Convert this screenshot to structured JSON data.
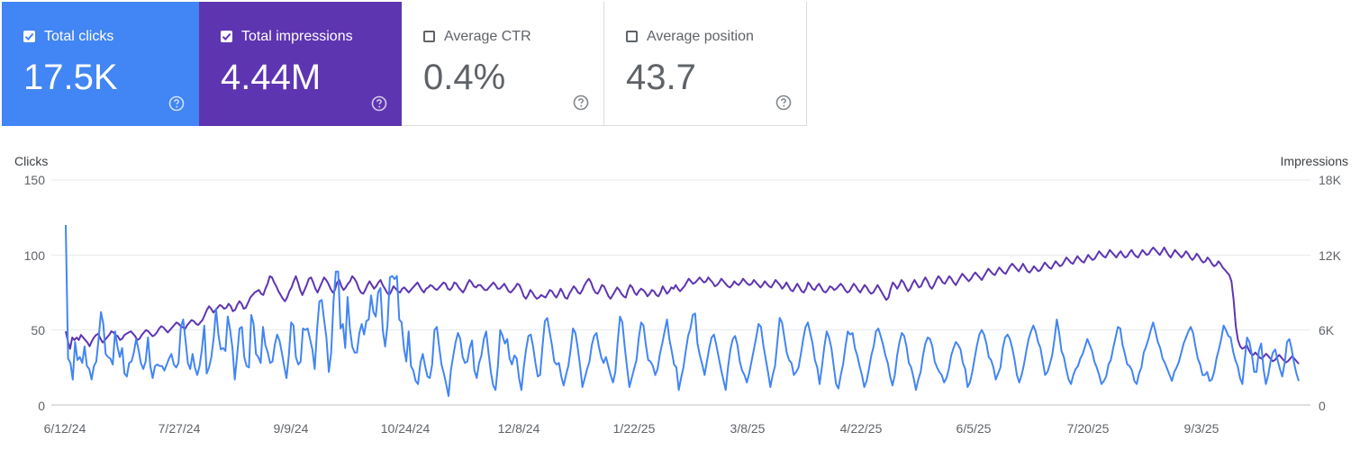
{
  "metrics": [
    {
      "key": "clicks",
      "label": "Total clicks",
      "value": "17.5K",
      "checked": true
    },
    {
      "key": "impr",
      "label": "Total impressions",
      "value": "4.44M",
      "checked": true
    },
    {
      "key": "ctr",
      "label": "Average CTR",
      "value": "0.4%",
      "checked": false
    },
    {
      "key": "pos",
      "label": "Average position",
      "value": "43.7",
      "checked": false
    }
  ],
  "colors": {
    "clicks": "#4285f4",
    "impressions": "#5e35b1",
    "grid": "#e8eaed",
    "baseline": "#bdc1c6"
  },
  "chart_data": {
    "type": "line",
    "left_axis_title": "Clicks",
    "right_axis_title": "Impressions",
    "left_ticks": [
      "150",
      "100",
      "50",
      "0"
    ],
    "right_ticks": [
      "18K",
      "12K",
      "6K",
      "0"
    ],
    "ylim_left": [
      0,
      150
    ],
    "ylim_right": [
      0,
      18000
    ],
    "x_ticks": [
      "6/12/24",
      "7/27/24",
      "9/9/24",
      "10/24/24",
      "12/8/24",
      "1/22/25",
      "3/8/25",
      "4/22/25",
      "6/5/25",
      "7/20/25",
      "9/3/25"
    ],
    "series": [
      {
        "name": "Clicks",
        "axis": "left",
        "values": [
          120,
          31,
          28,
          17,
          42,
          30,
          32,
          28,
          39,
          26,
          24,
          17,
          26,
          29,
          44,
          62,
          54,
          34,
          32,
          31,
          27,
          49,
          39,
          32,
          38,
          21,
          19,
          28,
          29,
          35,
          44,
          37,
          28,
          24,
          29,
          45,
          26,
          18,
          26,
          27,
          26,
          26,
          23,
          27,
          31,
          34,
          27,
          25,
          28,
          52,
          57,
          43,
          28,
          24,
          34,
          25,
          20,
          26,
          37,
          53,
          21,
          25,
          32,
          45,
          64,
          47,
          37,
          38,
          36,
          59,
          50,
          38,
          17,
          34,
          51,
          52,
          32,
          26,
          25,
          60,
          54,
          34,
          32,
          28,
          52,
          40,
          35,
          28,
          29,
          40,
          47,
          43,
          35,
          26,
          18,
          33,
          55,
          53,
          32,
          27,
          29,
          51,
          50,
          51,
          44,
          37,
          24,
          50,
          69,
          70,
          57,
          45,
          22,
          35,
          69,
          89,
          89,
          51,
          54,
          38,
          72,
          51,
          39,
          35,
          35,
          48,
          54,
          47,
          56,
          57,
          73,
          62,
          59,
          75,
          78,
          50,
          39,
          53,
          85,
          86,
          84,
          86,
          57,
          55,
          38,
          29,
          49,
          26,
          23,
          16,
          14,
          28,
          34,
          26,
          19,
          18,
          27,
          50,
          52,
          39,
          27,
          21,
          14,
          6,
          23,
          33,
          42,
          48,
          44,
          32,
          28,
          29,
          38,
          43,
          23,
          18,
          28,
          33,
          44,
          49,
          35,
          22,
          13,
          10,
          26,
          50,
          46,
          41,
          44,
          31,
          27,
          33,
          31,
          18,
          10,
          25,
          37,
          46,
          47,
          39,
          28,
          19,
          20,
          39,
          56,
          58,
          49,
          40,
          29,
          27,
          28,
          19,
          13,
          20,
          26,
          37,
          51,
          48,
          38,
          26,
          12,
          18,
          24,
          29,
          40,
          46,
          48,
          39,
          32,
          28,
          32,
          26,
          20,
          15,
          22,
          42,
          59,
          55,
          39,
          25,
          12,
          18,
          24,
          30,
          45,
          55,
          53,
          40,
          30,
          29,
          26,
          20,
          24,
          34,
          41,
          49,
          57,
          44,
          36,
          27,
          25,
          10,
          18,
          25,
          36,
          46,
          51,
          60,
          61,
          41,
          33,
          27,
          20,
          29,
          38,
          45,
          47,
          40,
          32,
          24,
          17,
          10,
          25,
          37,
          44,
          46,
          40,
          29,
          23,
          20,
          15,
          21,
          29,
          37,
          45,
          54,
          52,
          40,
          31,
          22,
          12,
          20,
          26,
          42,
          58,
          55,
          45,
          35,
          30,
          28,
          20,
          22,
          25,
          34,
          44,
          52,
          55,
          48,
          41,
          30,
          25,
          14,
          26,
          39,
          49,
          45,
          38,
          26,
          14,
          11,
          20,
          27,
          39,
          49,
          47,
          48,
          38,
          33,
          26,
          20,
          12,
          16,
          24,
          33,
          39,
          49,
          51,
          46,
          40,
          33,
          28,
          19,
          13,
          20,
          33,
          42,
          48,
          46,
          39,
          28,
          25,
          18,
          10,
          17,
          22,
          33,
          41,
          45,
          44,
          39,
          29,
          25,
          22,
          20,
          15,
          18,
          24,
          33,
          38,
          42,
          40,
          37,
          28,
          24,
          12,
          15,
          22,
          31,
          40,
          47,
          50,
          47,
          41,
          32,
          30,
          25,
          17,
          21,
          25,
          38,
          45,
          47,
          44,
          38,
          30,
          20,
          15,
          20,
          27,
          36,
          44,
          49,
          53,
          49,
          42,
          38,
          29,
          20,
          22,
          27,
          33,
          44,
          57,
          48,
          36,
          32,
          24,
          17,
          14,
          20,
          24,
          26,
          31,
          34,
          39,
          44,
          40,
          36,
          29,
          25,
          20,
          14,
          16,
          19,
          27,
          30,
          38,
          45,
          52,
          51,
          40,
          34,
          27,
          26,
          23,
          16,
          14,
          21,
          25,
          35,
          39,
          44,
          50,
          55,
          49,
          42,
          38,
          31,
          28,
          24,
          20,
          16,
          22,
          25,
          29,
          35,
          41,
          45,
          49,
          52,
          48,
          39,
          31,
          27,
          20,
          20,
          22,
          16,
          17,
          22,
          31,
          37,
          44,
          53,
          50,
          46,
          45,
          36,
          30,
          26,
          18,
          14,
          30,
          45,
          42,
          34,
          22,
          22,
          36,
          41,
          24,
          14,
          20,
          29,
          35,
          37,
          30,
          24,
          19,
          28,
          42,
          44,
          37,
          28,
          21,
          16
        ]
      },
      {
        "name": "Impressions",
        "axis": "right",
        "values": [
          5900,
          5100,
          4500,
          5400,
          5200,
          5400,
          5200,
          5600,
          5400,
          5200,
          5000,
          4700,
          5100,
          5400,
          5600,
          5700,
          5300,
          5000,
          5200,
          5400,
          5600,
          5900,
          5800,
          5600,
          5500,
          5200,
          5300,
          5600,
          5700,
          5800,
          5900,
          5700,
          5500,
          5200,
          5300,
          5600,
          5800,
          6000,
          5900,
          5700,
          5500,
          5600,
          5800,
          6100,
          6300,
          6200,
          6000,
          5800,
          6000,
          6200,
          6400,
          6600,
          6500,
          6300,
          6200,
          6100,
          6400,
          6600,
          6800,
          6700,
          6500,
          6400,
          6600,
          6800,
          7200,
          7600,
          7900,
          7700,
          7400,
          7600,
          7800,
          8000,
          7900,
          7700,
          7800,
          8100,
          7900,
          7500,
          7600,
          8000,
          8300,
          8100,
          7700,
          7800,
          8200,
          8600,
          8800,
          9000,
          9100,
          9200,
          8900,
          8800,
          9300,
          9700,
          10300,
          10200,
          9800,
          9500,
          9100,
          8800,
          8500,
          8300,
          8600,
          9100,
          9400,
          9900,
          10300,
          9800,
          9200,
          8800,
          9200,
          9600,
          10100,
          10200,
          9800,
          9300,
          9000,
          9400,
          9800,
          10200,
          10000,
          9700,
          9300,
          9000,
          9200,
          9800,
          10000,
          9500,
          9200,
          9400,
          9700,
          9900,
          10300,
          10100,
          9800,
          9300,
          9000,
          8900,
          9200,
          9600,
          9900,
          9600,
          9300,
          9500,
          9800,
          10000,
          9600,
          9300,
          9000,
          8800,
          9100,
          9500,
          9300,
          9100,
          9000,
          9300,
          9400,
          9200,
          9000,
          9200,
          9400,
          9600,
          9800,
          9500,
          9200,
          9000,
          9300,
          9400,
          9600,
          9500,
          9300,
          9200,
          9400,
          9600,
          9800,
          9700,
          9300,
          9200,
          9400,
          9800,
          9700,
          9400,
          9200,
          9000,
          9300,
          9700,
          10000,
          9800,
          9500,
          9400,
          9600,
          9600,
          9400,
          9200,
          9200,
          9400,
          9600,
          9800,
          9600,
          9300,
          9300,
          9500,
          9700,
          9400,
          9100,
          9000,
          9200,
          9400,
          9700,
          9600,
          9200,
          8700,
          8500,
          8800,
          9200,
          9000,
          8700,
          8500,
          8600,
          8800,
          8700,
          8600,
          8900,
          9200,
          9100,
          8800,
          8600,
          8900,
          9300,
          9000,
          8600,
          8500,
          8900,
          9200,
          9500,
          9300,
          9000,
          8900,
          9200,
          9600,
          9900,
          10100,
          9800,
          9300,
          9000,
          8900,
          9200,
          9600,
          9500,
          9100,
          8700,
          8500,
          8800,
          9100,
          9400,
          9200,
          8900,
          8700,
          8600,
          9200,
          9600,
          9400,
          9000,
          8800,
          9100,
          9300,
          9200,
          9000,
          8700,
          8900,
          9200,
          9100,
          8800,
          8700,
          9000,
          9500,
          9200,
          8900,
          9100,
          9400,
          9300,
          9600,
          9300,
          9100,
          9300,
          9500,
          9800,
          10100,
          9900,
          9700,
          9800,
          10000,
          10200,
          10000,
          9800,
          9900,
          10200,
          10000,
          9800,
          9500,
          9600,
          9800,
          10100,
          9900,
          9700,
          9500,
          9400,
          9600,
          9900,
          9700,
          9600,
          9800,
          10100,
          9900,
          9700,
          9600,
          9700,
          10000,
          9800,
          9600,
          9400,
          9600,
          9900,
          9700,
          9500,
          9400,
          9700,
          10000,
          9800,
          9600,
          9300,
          9500,
          9800,
          9500,
          9200,
          9100,
          9400,
          9700,
          9400,
          9100,
          9000,
          9300,
          9800,
          9600,
          9300,
          9200,
          9500,
          9700,
          9400,
          9100,
          9000,
          9200,
          9500,
          9400,
          9200,
          9300,
          9500,
          9700,
          9500,
          9200,
          9000,
          9100,
          9400,
          9700,
          9500,
          9200,
          9000,
          9300,
          9600,
          9400,
          9100,
          8900,
          9000,
          9300,
          9600,
          9300,
          9000,
          8700,
          8400,
          8600,
          9300,
          9800,
          9600,
          9300,
          9600,
          10000,
          9800,
          9400,
          9100,
          9300,
          9700,
          10000,
          9700,
          9400,
          9500,
          9900,
          10200,
          9900,
          9500,
          9300,
          9600,
          10000,
          10300,
          10100,
          9800,
          9700,
          10000,
          10300,
          10100,
          9800,
          9600,
          9900,
          10200,
          10500,
          10300,
          10100,
          9900,
          10100,
          10400,
          10600,
          10400,
          10200,
          10000,
          10300,
          10600,
          10900,
          10700,
          10500,
          10400,
          10700,
          11000,
          10800,
          10600,
          10500,
          10800,
          11100,
          11300,
          11100,
          10900,
          10700,
          11000,
          11300,
          11000,
          10700,
          10600,
          10800,
          11100,
          10900,
          10700,
          10800,
          11100,
          11400,
          11200,
          11000,
          10900,
          11200,
          11500,
          11300,
          11100,
          11200,
          11500,
          11800,
          11600,
          11400,
          11300,
          11600,
          11900,
          11700,
          11500,
          11400,
          11700,
          12000,
          11800,
          11600,
          11700,
          12000,
          12300,
          12100,
          11900,
          11800,
          12100,
          12400,
          12200,
          12000,
          11800,
          12100,
          12300,
          12000,
          11800,
          11900,
          12200,
          12400,
          12100,
          11900,
          11800,
          12100,
          12400,
          12200,
          12000,
          12100,
          12400,
          12600,
          12400,
          12200,
          12000,
          12300,
          12600,
          12300,
          12000,
          11800,
          12100,
          12400,
          12200,
          12000,
          11800,
          12000,
          12300,
          12100,
          11800,
          11600,
          11800,
          12100,
          11900,
          11600,
          11400,
          11500,
          11800,
          11600,
          11300,
          11100,
          11200,
          11500,
          11300,
          11000,
          10800,
          10600,
          10400,
          9900,
          8400,
          6300,
          5200,
          4700,
          4500,
          4600,
          4800,
          4400,
          4100,
          4000,
          4200,
          4000,
          3800,
          3700,
          3900,
          4100,
          3900,
          3700,
          3500,
          3600,
          3800,
          4000,
          3800,
          3600,
          3400,
          3500,
          3700,
          3900,
          3700,
          3500,
          3300
        ]
      }
    ]
  }
}
